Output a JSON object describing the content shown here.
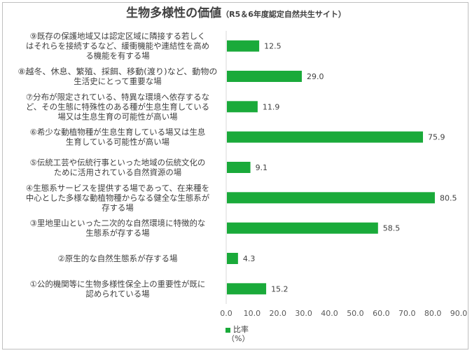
{
  "chart_data": {
    "type": "bar",
    "orientation": "horizontal",
    "title": "生物多様性の価値",
    "subtitle": "（R5＆6年度認定自然共生サイト）",
    "categories": [
      "⑨既存の保護地域又は認定区域に隣接する若しくはそれらを接続するなど、緩衝機能や連結性を高める機能を有する場",
      "⑧越冬、休息、繁殖、採餌、移動(渡り)など、動物の生活史にとって重要な場",
      "⑦分布が限定されている、特異な環境へ依存するなど、その生態に特殊性のある種が生息生育している場又は生息生育の可能性が高い場",
      "⑥希少な動植物種が生息生育している場又は生息生育している可能性が高い場",
      "⑤伝統工芸や伝統行事といった地域の伝統文化のために活用されている自然資源の場",
      "④生態系サービスを提供する場であって、在来種を中心とした多様な動植物種からなる健全な生態系が存する場",
      "③里地里山といった二次的な自然環境に特徴的な生態系が存する場",
      "②原生的な自然生態系が存する場",
      "①公的機関等に生物多様性保全上の重要性が既に認められている場"
    ],
    "category_lines": [
      [
        "⑨既存の保護地域又は認定区域に隣接する若しく",
        "はそれらを接続するなど、緩衝機能や連結性を高め",
        "る機能を有する場"
      ],
      [
        "⑧越冬、休息、繁殖、採餌、移動(渡り)など、動物の",
        "生活史にとって重要な場"
      ],
      [
        "⑦分布が限定されている、特異な環境へ依存するな",
        "ど、その生態に特殊性のある種が生息生育している",
        "場又は生息生育の可能性が高い場"
      ],
      [
        "⑥希少な動植物種が生息生育している場又は生息",
        "生育している可能性が高い場"
      ],
      [
        "⑤伝統工芸や伝統行事といった地域の伝統文化の",
        "ために活用されている自然資源の場"
      ],
      [
        "④生態系サービスを提供する場であって、在来種を",
        "中心とした多様な動植物種からなる健全な生態系が",
        "存する場"
      ],
      [
        "③里地里山といった二次的な自然環境に特徴的な",
        "生態系が存する場"
      ],
      [
        "②原生的な自然生態系が存する場"
      ],
      [
        "①公的機関等に生物多様性保全上の重要性が既に",
        "認められている場"
      ]
    ],
    "values": [
      12.5,
      29.0,
      11.9,
      75.9,
      9.1,
      80.5,
      58.5,
      4.3,
      15.2
    ],
    "value_labels": [
      "12.5",
      "29.0",
      "11.9",
      "75.9",
      "9.1",
      "80.5",
      "58.5",
      "4.3",
      "15.2"
    ],
    "xlim": [
      0,
      90
    ],
    "x_ticks": [
      "0.0",
      "10.0",
      "20.0",
      "30.0",
      "40.0",
      "50.0",
      "60.0",
      "70.0",
      "80.0",
      "90.0"
    ],
    "series": [
      {
        "name": "比率",
        "values": [
          12.5,
          29.0,
          11.9,
          75.9,
          9.1,
          80.5,
          58.5,
          4.3,
          15.2
        ]
      }
    ],
    "unit_label": "（%）",
    "bar_color": "#1aaa3a",
    "grid": false,
    "legend_position": "bottom"
  }
}
